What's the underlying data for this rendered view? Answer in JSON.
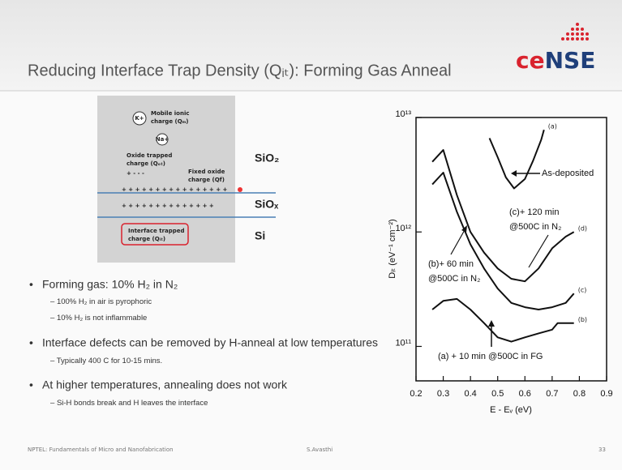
{
  "header": {
    "title": "Reducing Interface Trap Density (Qᵢₜ): Forming Gas Anneal",
    "logo": [
      "ce",
      "NSE"
    ]
  },
  "diagram": {
    "k_ion": "K+",
    "mobile_label": [
      "Mobile ionic",
      "charge (Qₘ)"
    ],
    "na_ion": "Na+",
    "oxide_label": [
      "Oxide trapped",
      "charge (Qₒₜ)"
    ],
    "oxide_charges": "+ -  -  -",
    "fixed_label": [
      "Fixed oxide",
      "charge (Qf)"
    ],
    "fixed_charges": "+ + + + + + + + + + + + + + + +",
    "interface_charges": "+ + + + + + + + + + + + + +",
    "interface_label": [
      "Interface trapped",
      "charge (Qᵢₜ)"
    ],
    "sio2": "SiO₂",
    "siox": "SiOₓ",
    "si": "Si"
  },
  "bullets": [
    {
      "text": "Forming gas: 10% H₂ in N₂",
      "sub": [
        "100% H₂ in air is pyrophoric",
        "10% H₂ is not inflammable"
      ]
    },
    {
      "text": "Interface defects can be removed by H-anneal at low temperatures",
      "sub": [
        "Typically 400 C for 10-15 mins."
      ]
    },
    {
      "text": "At higher temperatures, annealing does not work",
      "sub": [
        "Si-H bonds break and H leaves the interface"
      ]
    }
  ],
  "footer": {
    "left": "NPTEL: Fundamentals of Micro and Nanofabrication",
    "center": "S.Avasthi",
    "right": "33"
  },
  "chart_data": {
    "type": "line",
    "x_label": "E - Eᵥ (eV)",
    "y_label": "Dᵢₜ (eV⁻¹ cm⁻²)",
    "log_y": true,
    "xlim": [
      0.2,
      0.9
    ],
    "xticks": [
      0.2,
      0.3,
      0.4,
      0.5,
      0.6,
      0.7,
      0.8,
      0.9
    ],
    "ylim": [
      50000000000,
      10000000000000
    ],
    "yticks": [
      {
        "value": 100000000000,
        "label": "10¹¹"
      },
      {
        "value": 1000000000000,
        "label": "10¹²"
      },
      {
        "value": 10000000000000,
        "label": "10¹³"
      }
    ],
    "series": [
      {
        "name": "(a)",
        "color": "#111111",
        "x": [
          0.47,
          0.5,
          0.53,
          0.56,
          0.6,
          0.63,
          0.66,
          0.67
        ],
        "values": [
          6600000000000,
          4500000000000,
          3000000000000,
          2400000000000,
          2900000000000,
          4200000000000,
          6400000000000,
          7800000000000
        ]
      },
      {
        "name": "(d)",
        "color": "#111111",
        "x": [
          0.26,
          0.3,
          0.35,
          0.4,
          0.45,
          0.5,
          0.55,
          0.6,
          0.65,
          0.7,
          0.75,
          0.78
        ],
        "values": [
          4100000000000,
          5200000000000,
          2100000000000,
          1000000000000,
          660000000000,
          480000000000,
          390000000000,
          370000000000,
          480000000000,
          720000000000,
          910000000000,
          1000000000000
        ]
      },
      {
        "name": "(c)",
        "color": "#111111",
        "x": [
          0.26,
          0.3,
          0.35,
          0.4,
          0.45,
          0.5,
          0.55,
          0.6,
          0.65,
          0.7,
          0.75,
          0.78
        ],
        "values": [
          2600000000000,
          3300000000000,
          1500000000000,
          780000000000,
          480000000000,
          320000000000,
          240000000000,
          220000000000,
          210000000000,
          220000000000,
          240000000000,
          290000000000
        ]
      },
      {
        "name": "(b)",
        "color": "#111111",
        "x": [
          0.26,
          0.3,
          0.35,
          0.4,
          0.45,
          0.5,
          0.55,
          0.6,
          0.65,
          0.7,
          0.72,
          0.78
        ],
        "values": [
          210000000000,
          250000000000,
          260000000000,
          210000000000,
          160000000000,
          120000000000,
          110000000000,
          120000000000,
          130000000000,
          140000000000,
          160000000000,
          160000000000
        ]
      }
    ],
    "annotations": [
      "As-deposited",
      "(c)+ 120 min",
      "@500C in N₂",
      "(b)+ 60 min",
      "@500C in N₂",
      "(a) + 10 min @500C in FG"
    ]
  }
}
